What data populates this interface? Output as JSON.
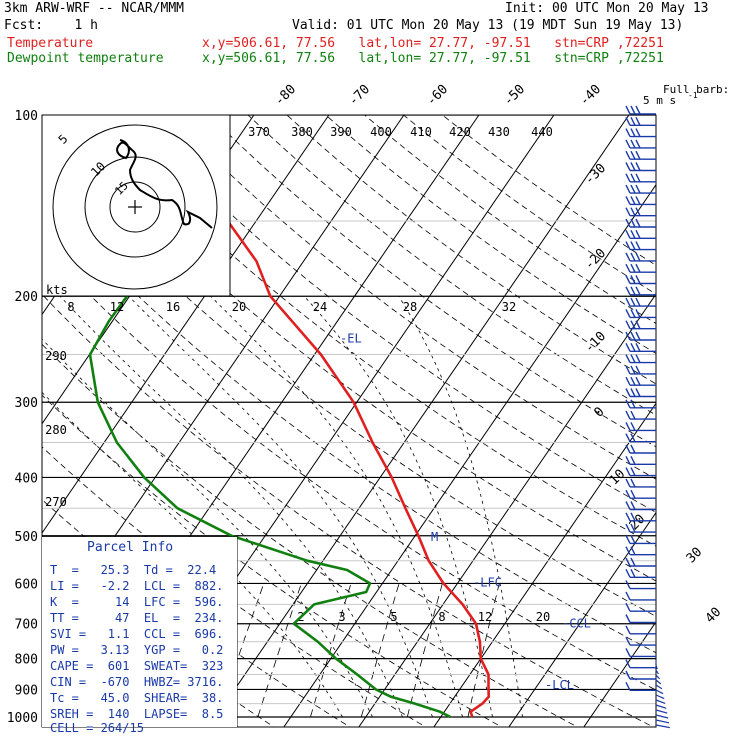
{
  "header": {
    "line1_left": "3km ARW-WRF -- NCAR/MMM",
    "line1_right": "Init: 00 UTC Mon 20 May 13",
    "line2_left": "Fcst:    1 h",
    "line2_right": "Valid: 01 UTC Mon 20 May 13 (19 MDT Sun 19 May 13)",
    "temp_label": "Temperature",
    "temp_info": "x,y=506.61, 77.56   lat,lon= 27.77, -97.51   stn=CRP ,72251",
    "dew_label": "Dewpoint temperature",
    "dew_info": "x,y=506.61, 77.56   lat,lon= 27.77, -97.51   stn=CRP ,72251"
  },
  "colors": {
    "temperature": "#e02020",
    "dewpoint": "#108010",
    "annotation": "#1a3aa8",
    "grid": "#000000"
  },
  "chart_data": {
    "type": "line",
    "title": "",
    "yaxis": {
      "scale": "log",
      "unit": "hPa",
      "ticks": [
        100,
        200,
        300,
        400,
        500,
        600,
        700,
        800,
        900,
        1000
      ]
    },
    "isotherm_labels": [
      "-80",
      "-70",
      "-60",
      "-50",
      "-40",
      "-30",
      "-20",
      "-10",
      "0",
      "10",
      "20",
      "30",
      "40"
    ],
    "theta_labels": [
      "370",
      "380",
      "390",
      "400",
      "410",
      "420",
      "430",
      "440",
      "290",
      "280",
      "270"
    ],
    "mixing_ratio_labels": [
      "2",
      "3",
      "5",
      "8",
      "12",
      "20"
    ],
    "series": [
      {
        "name": "Temperature",
        "color": "#e02020",
        "points": [
          [
            1000,
            25.3
          ],
          [
            980,
            24.6
          ],
          [
            950,
            25.4
          ],
          [
            925,
            25.6
          ],
          [
            900,
            24.9
          ],
          [
            850,
            23.5
          ],
          [
            800,
            21.0
          ],
          [
            750,
            19.3
          ],
          [
            700,
            17.1
          ],
          [
            650,
            13.5
          ],
          [
            600,
            9.0
          ],
          [
            550,
            4.9
          ],
          [
            500,
            1.2
          ],
          [
            450,
            -3.1
          ],
          [
            400,
            -7.8
          ],
          [
            350,
            -13.6
          ],
          [
            300,
            -19.9
          ],
          [
            250,
            -28.7
          ],
          [
            200,
            -40.9
          ],
          [
            175,
            -46.0
          ],
          [
            150,
            -53.6
          ],
          [
            130,
            -61.0
          ],
          [
            115,
            -64.8
          ],
          [
            100,
            -69.3
          ]
        ]
      },
      {
        "name": "Dewpoint temperature",
        "color": "#108010",
        "points": [
          [
            1000,
            22.4
          ],
          [
            980,
            20.5
          ],
          [
            950,
            16.4
          ],
          [
            925,
            12.5
          ],
          [
            900,
            9.9
          ],
          [
            850,
            6.0
          ],
          [
            800,
            1.7
          ],
          [
            750,
            -2.3
          ],
          [
            700,
            -7.2
          ],
          [
            650,
            -6.3
          ],
          [
            620,
            -0.5
          ],
          [
            600,
            -0.8
          ],
          [
            570,
            -5.1
          ],
          [
            550,
            -11.3
          ],
          [
            500,
            -23.7
          ],
          [
            450,
            -33.5
          ],
          [
            400,
            -40.8
          ],
          [
            350,
            -47.7
          ],
          [
            300,
            -54.0
          ],
          [
            250,
            -59.5
          ],
          [
            220,
            -60.1
          ],
          [
            200,
            -60.0
          ],
          [
            180,
            -60.5
          ],
          [
            160,
            -62.0
          ],
          [
            140,
            -67.0
          ],
          [
            120,
            -74.0
          ],
          [
            100,
            -82.0
          ]
        ]
      }
    ],
    "level_labels": [
      {
        "label": "-EL",
        "p": 234
      },
      {
        "label": "M",
        "p": 500
      },
      {
        "label": "-LFC",
        "p": 596
      },
      {
        "label": "-CCL",
        "p": 696
      },
      {
        "label": "-LCL",
        "p": 882
      }
    ]
  },
  "hodograph": {
    "units_label": "kts",
    "ring_labels": [
      "5",
      "10",
      "15"
    ],
    "xticks": [
      "8",
      "12",
      "16",
      "20",
      "24",
      "28",
      "32"
    ]
  },
  "wind_barbs": {
    "legend_title": "Full barb:",
    "legend_unit": "5 m s",
    "legend_exp": "-1"
  },
  "parcel_info": {
    "title": "Parcel Info",
    "rows": [
      "T  =   25.3  Td =  22.4",
      "LI =   -2.2  LCL =  882.",
      "K  =     14  LFC =  596.",
      "TT =     47  EL  =  234.",
      "SVI =   1.1  CCL =  696.",
      "PW =   3.13  YGP =   0.2",
      "CAPE =  601  SWEAT=  323",
      "CIN =  -670  HWBZ= 3716.",
      "Tc =   45.0  SHEAR=  38.",
      "SREH =  140  LAPSE=  8.5",
      "CELL = 264/15"
    ]
  }
}
